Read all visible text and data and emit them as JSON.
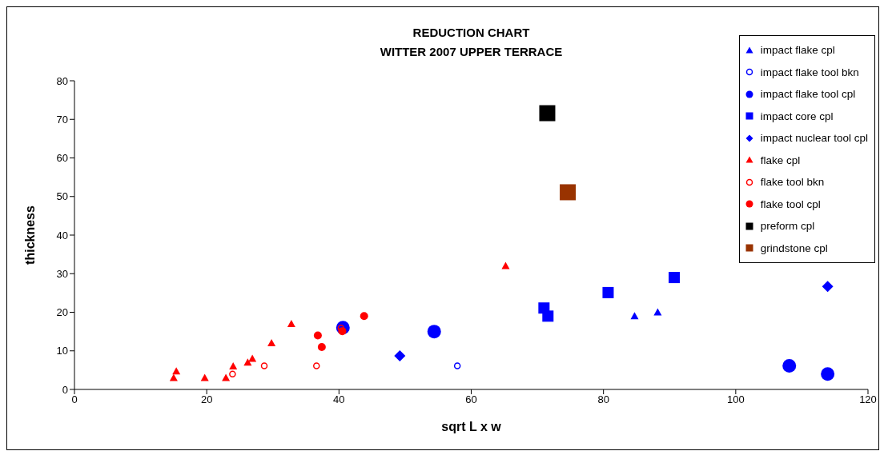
{
  "chart_data": {
    "type": "scatter",
    "title": "REDUCTION CHART\nWITTER 2007 UPPER TERRACE",
    "xlabel": "sqrt L x w",
    "ylabel": "thickness",
    "xlim": [
      0,
      120
    ],
    "xticks": [
      0,
      20,
      40,
      60,
      80,
      100,
      120
    ],
    "ylim": [
      0,
      80
    ],
    "yticks": [
      0,
      10,
      20,
      30,
      40,
      50,
      60,
      70,
      80
    ],
    "grid": false,
    "legend": "top right",
    "series": [
      {
        "name": "impact flake cpl",
        "color": "#0000ff",
        "marker": "triangle",
        "x": [
          84.7,
          88.2
        ],
        "values": [
          19,
          20
        ]
      },
      {
        "name": "impact flake tool bkn",
        "color": "#0000ff",
        "marker": "circle-open",
        "x": [
          57.9
        ],
        "values": [
          6.1
        ]
      },
      {
        "name": "impact flake tool cpl",
        "color": "#0000ff",
        "marker": "circle",
        "x": [
          40.6,
          54.4,
          108.1,
          113.9
        ],
        "values": [
          16,
          15,
          6.1,
          4
        ]
      },
      {
        "name": "impact core cpl",
        "color": "#0000ff",
        "marker": "square",
        "x": [
          71.0,
          71.6,
          80.7,
          90.7
        ],
        "values": [
          21.1,
          19,
          25.1,
          29
        ]
      },
      {
        "name": "impact nuclear tool cpl",
        "color": "#0000ff",
        "marker": "diamond",
        "x": [
          49.2,
          113.9
        ],
        "values": [
          8.7,
          26.7
        ]
      },
      {
        "name": "flake cpl",
        "color": "#ff0000",
        "marker": "triangle",
        "x": [
          15.0,
          15.4,
          19.7,
          22.9,
          24.0,
          26.2,
          26.9,
          29.8,
          32.8,
          65.2
        ],
        "values": [
          3,
          4.7,
          3,
          3,
          6,
          7,
          8,
          12,
          17,
          32
        ]
      },
      {
        "name": "flake tool bkn",
        "color": "#ff0000",
        "marker": "circle-open",
        "x": [
          23.9,
          28.7,
          36.6,
          40.3
        ],
        "values": [
          4,
          6.1,
          6.1,
          15.9
        ]
      },
      {
        "name": "flake tool cpl",
        "color": "#ff0000",
        "marker": "circle",
        "x": [
          36.8,
          37.4,
          43.8,
          40.5
        ],
        "values": [
          14,
          11,
          19,
          15.1
        ]
      },
      {
        "name": "preform cpl",
        "color": "#000000",
        "marker": "square",
        "x": [
          71.5
        ],
        "values": [
          71.6
        ]
      },
      {
        "name": "grindstone cpl",
        "color": "#993300",
        "marker": "square",
        "x": [
          74.6
        ],
        "values": [
          51.1
        ]
      }
    ]
  }
}
